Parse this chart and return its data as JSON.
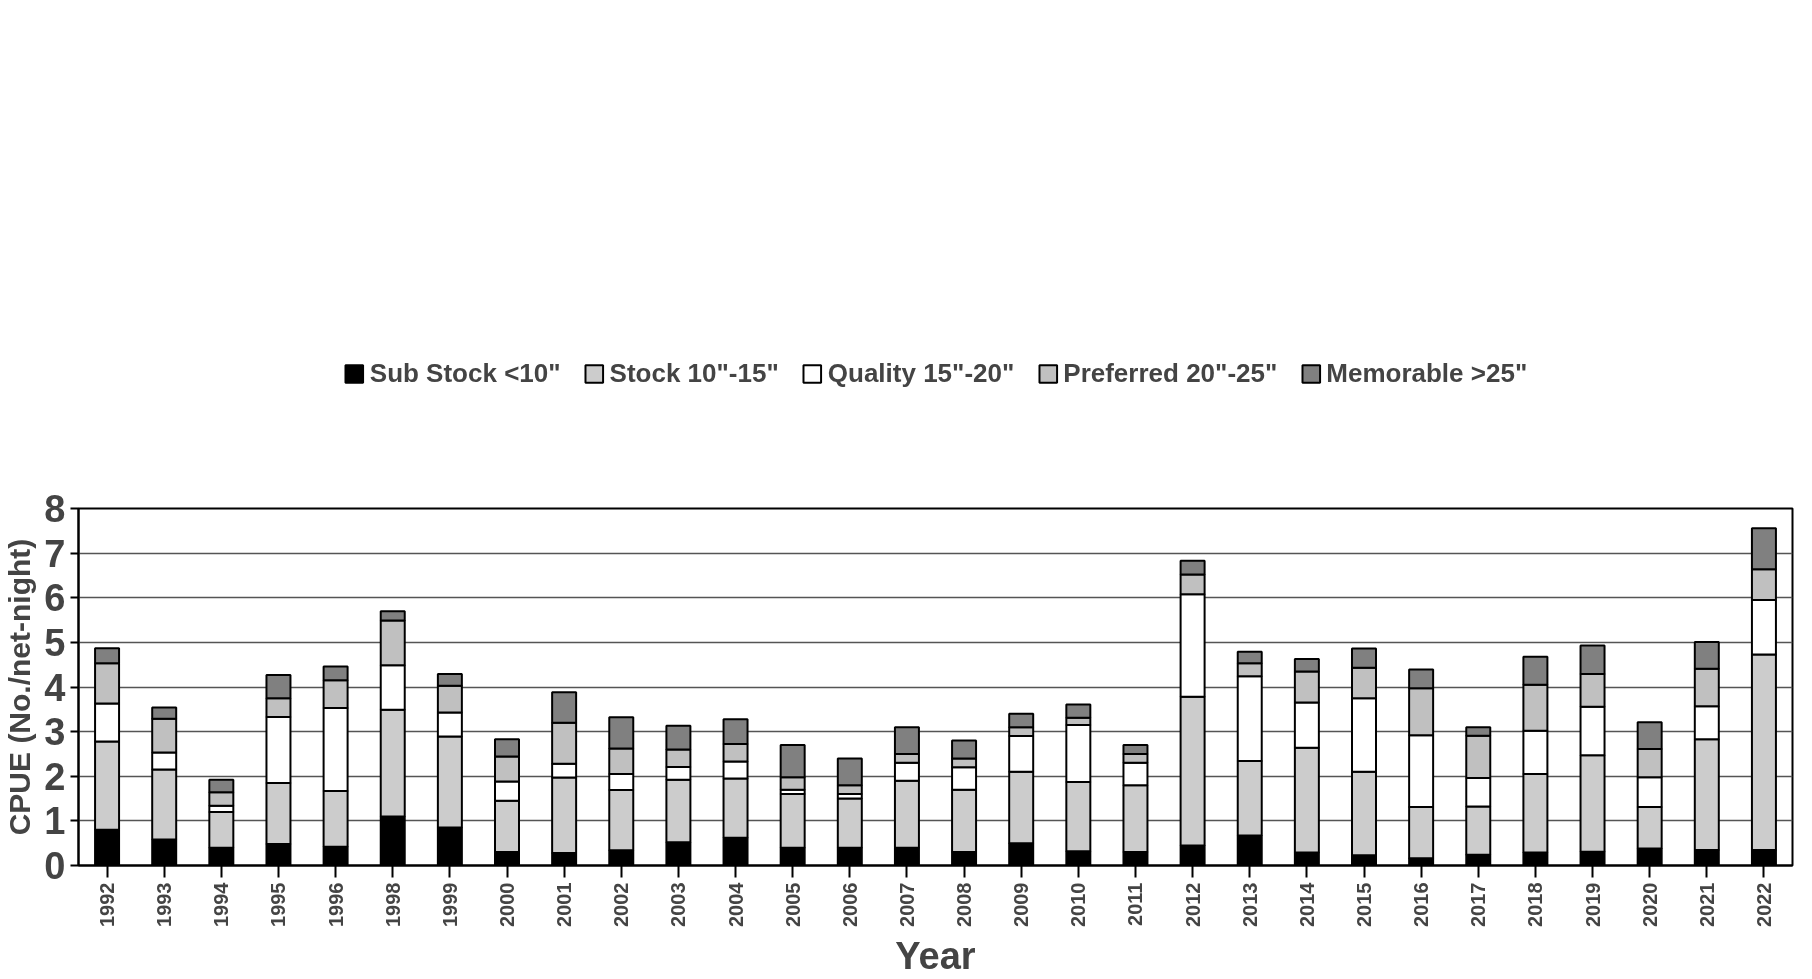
{
  "chart_data": {
    "type": "bar",
    "stacked": true,
    "xlabel": "Year",
    "ylabel": "CPUE (No./net-night)",
    "categories": [
      "1992",
      "1993",
      "1994",
      "1995",
      "1996",
      "1998",
      "1999",
      "2000",
      "2001",
      "2002",
      "2003",
      "2004",
      "2005",
      "2006",
      "2007",
      "2008",
      "2009",
      "2010",
      "2011",
      "2012",
      "2013",
      "2014",
      "2015",
      "2016",
      "2017",
      "2018",
      "2019",
      "2020",
      "2021",
      "2022"
    ],
    "ylim": [
      0,
      8
    ],
    "yticks": [
      0,
      1,
      2,
      3,
      4,
      5,
      6,
      7,
      8
    ],
    "grid": "y",
    "legend": "top",
    "series": [
      {
        "name": "Sub Stock <10\"",
        "color": "#000000",
        "values": [
          0.8,
          0.58,
          0.4,
          0.48,
          0.42,
          1.1,
          0.85,
          0.3,
          0.28,
          0.34,
          0.52,
          0.62,
          0.4,
          0.4,
          0.4,
          0.3,
          0.5,
          0.32,
          0.3,
          0.45,
          0.67,
          0.29,
          0.23,
          0.16,
          0.24,
          0.29,
          0.31,
          0.38,
          0.35,
          0.35
        ]
      },
      {
        "name": "Stock 10\"-15\"",
        "color": "#cccccc",
        "values": [
          1.98,
          1.57,
          0.8,
          1.37,
          1.25,
          2.39,
          2.04,
          1.15,
          1.69,
          1.35,
          1.4,
          1.33,
          1.2,
          1.1,
          1.5,
          1.4,
          1.6,
          1.55,
          1.5,
          3.33,
          1.67,
          2.35,
          1.87,
          1.15,
          1.08,
          1.76,
          2.16,
          0.93,
          2.48,
          4.38
        ]
      },
      {
        "name": "Quality 15\"-20\"",
        "color": "#ffffff",
        "values": [
          0.85,
          0.38,
          0.14,
          1.48,
          1.86,
          1.0,
          0.54,
          0.43,
          0.31,
          0.36,
          0.29,
          0.38,
          0.1,
          0.1,
          0.4,
          0.5,
          0.8,
          1.28,
          0.5,
          2.3,
          1.9,
          1.01,
          1.65,
          1.61,
          0.64,
          0.97,
          1.09,
          0.67,
          0.74,
          1.22
        ]
      },
      {
        "name": "Preferred 20\"-25\"",
        "color": "#c0c0c0",
        "values": [
          0.9,
          0.76,
          0.3,
          0.42,
          0.62,
          1.0,
          0.6,
          0.56,
          0.92,
          0.57,
          0.39,
          0.39,
          0.28,
          0.2,
          0.2,
          0.2,
          0.2,
          0.16,
          0.2,
          0.44,
          0.29,
          0.7,
          0.68,
          1.05,
          0.95,
          1.03,
          0.73,
          0.63,
          0.84,
          0.69
        ]
      },
      {
        "name": "Memorable >25\"",
        "color": "#808080",
        "values": [
          0.34,
          0.25,
          0.28,
          0.52,
          0.31,
          0.21,
          0.26,
          0.39,
          0.68,
          0.7,
          0.53,
          0.56,
          0.72,
          0.6,
          0.6,
          0.4,
          0.3,
          0.3,
          0.2,
          0.31,
          0.26,
          0.28,
          0.43,
          0.42,
          0.19,
          0.63,
          0.64,
          0.6,
          0.6,
          0.92
        ]
      }
    ]
  }
}
